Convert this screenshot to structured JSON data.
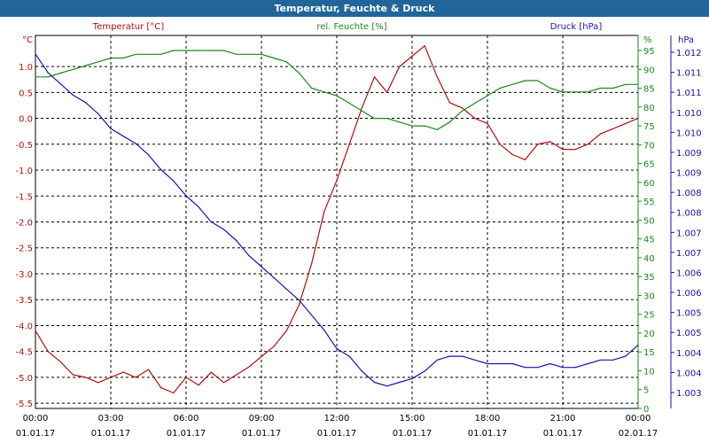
{
  "window": {
    "title": "Temperatur, Feuchte & Druck"
  },
  "colors": {
    "temperature": "#b01010",
    "humidity": "#1a8a1a",
    "pressure": "#1515a8",
    "grid": "#000000",
    "titlebar": "#21659a"
  },
  "chart_data": {
    "type": "line",
    "title": "Temperatur, Feuchte & Druck",
    "grid": true,
    "x_ticks": [
      {
        "time": "00:00",
        "date": "01.01.17"
      },
      {
        "time": "03:00",
        "date": "01.01.17"
      },
      {
        "time": "06:00",
        "date": "01.01.17"
      },
      {
        "time": "09:00",
        "date": "01.01.17"
      },
      {
        "time": "12:00",
        "date": "01.01.17"
      },
      {
        "time": "15:00",
        "date": "01.01.17"
      },
      {
        "time": "18:00",
        "date": "01.01.17"
      },
      {
        "time": "21:00",
        "date": "01.01.17"
      },
      {
        "time": "00:00",
        "date": "02.01.17"
      }
    ],
    "x_range_hours": [
      0,
      24
    ],
    "axes": {
      "temperature": {
        "legend": "Temperatur [°C]",
        "unit": "°C",
        "ylim": [
          -5.6,
          1.6
        ],
        "ticks": [
          "1.0",
          "0.5",
          "0.0",
          "-0.5",
          "-1.0",
          "-1.5",
          "-2.0",
          "-2.5",
          "-3.0",
          "-3.5",
          "-4.0",
          "-4.5",
          "-5.0",
          "-5.5"
        ]
      },
      "humidity": {
        "legend": "rel. Feuchte [%]",
        "unit": "%",
        "ylim": [
          0,
          99
        ],
        "ticks": [
          "95",
          "90",
          "85",
          "80",
          "75",
          "70",
          "65",
          "60",
          "55",
          "50",
          "45",
          "40",
          "35",
          "30",
          "25",
          "20",
          "15",
          "10",
          "5",
          "0"
        ]
      },
      "pressure": {
        "legend": "Druck [hPa]",
        "unit": "hPa",
        "ticks": [
          "1.012",
          "1.011",
          "1.011",
          "1.010",
          "1.010",
          "1.009",
          "1.009",
          "1.008",
          "1.008",
          "1.007",
          "1.007",
          "1.006",
          "1.006",
          "1.005",
          "1.005",
          "1.004",
          "1.004",
          "1.003"
        ]
      }
    },
    "series": [
      {
        "name": "Temperatur [°C]",
        "axis": "temperature",
        "x": [
          0,
          0.5,
          1,
          1.5,
          2,
          2.5,
          3,
          3.5,
          4,
          4.5,
          5,
          5.5,
          6,
          6.5,
          7,
          7.5,
          8,
          8.5,
          9,
          9.5,
          10,
          10.5,
          11,
          11.5,
          12,
          12.5,
          13,
          13.5,
          14,
          14.5,
          15,
          15.5,
          16,
          16.5,
          17,
          17.5,
          18,
          18.5,
          19,
          19.5,
          20,
          20.5,
          21,
          21.5,
          22,
          22.5,
          23,
          23.5,
          24
        ],
        "values": [
          -4.1,
          -4.5,
          -4.7,
          -4.95,
          -5.0,
          -5.1,
          -5.0,
          -4.9,
          -5.0,
          -4.85,
          -5.2,
          -5.3,
          -5.0,
          -5.15,
          -4.9,
          -5.1,
          -4.95,
          -4.8,
          -4.6,
          -4.4,
          -4.1,
          -3.6,
          -2.8,
          -1.8,
          -1.2,
          -0.5,
          0.2,
          0.8,
          0.5,
          1.0,
          1.2,
          1.4,
          0.8,
          0.3,
          0.2,
          0.0,
          -0.1,
          -0.5,
          -0.7,
          -0.8,
          -0.5,
          -0.45,
          -0.6,
          -0.6,
          -0.5,
          -0.3,
          -0.2,
          -0.1,
          0.0
        ]
      },
      {
        "name": "rel. Feuchte [%]",
        "axis": "humidity",
        "x": [
          0,
          0.5,
          1,
          1.5,
          2,
          2.5,
          3,
          3.5,
          4,
          4.5,
          5,
          5.5,
          6,
          6.5,
          7,
          7.5,
          8,
          8.5,
          9,
          9.5,
          10,
          10.5,
          11,
          11.5,
          12,
          12.5,
          13,
          13.5,
          14,
          14.5,
          15,
          15.5,
          16,
          16.5,
          17,
          17.5,
          18,
          18.5,
          19,
          19.5,
          20,
          20.5,
          21,
          21.5,
          22,
          22.5,
          23,
          23.5,
          24
        ],
        "values": [
          88,
          88,
          89,
          90,
          91,
          92,
          93,
          93,
          94,
          94,
          94,
          95,
          95,
          95,
          95,
          95,
          94,
          94,
          94,
          93,
          92,
          89,
          85,
          84,
          83,
          81,
          79,
          77,
          77,
          76,
          75,
          75,
          74,
          76,
          79,
          81,
          83,
          85,
          86,
          87,
          87,
          85,
          84,
          84,
          84,
          85,
          85,
          86,
          86
        ]
      },
      {
        "name": "Druck [hPa]",
        "axis": "pressure",
        "x": [
          0,
          0.5,
          1,
          1.5,
          2,
          2.5,
          3,
          3.5,
          4,
          4.5,
          5,
          5.5,
          6,
          6.5,
          7,
          7.5,
          8,
          8.5,
          9,
          9.5,
          10,
          10.5,
          11,
          11.5,
          12,
          12.5,
          13,
          13.5,
          14,
          14.5,
          15,
          15.5,
          16,
          16.5,
          17,
          17.5,
          18,
          18.5,
          19,
          19.5,
          20,
          20.5,
          21,
          21.5,
          22,
          22.5,
          23,
          23.5,
          24
        ],
        "levels_pct": [
          95,
          90,
          87,
          84,
          82,
          79,
          75,
          73,
          71,
          68,
          64,
          61,
          57,
          54,
          50,
          48,
          45,
          41,
          38,
          35,
          32,
          29,
          25,
          21,
          16,
          14,
          10,
          7,
          6,
          7,
          8,
          10,
          13,
          14,
          14,
          13,
          12,
          12,
          12,
          11,
          11,
          12,
          11,
          11,
          12,
          13,
          13,
          14,
          17
        ]
      }
    ]
  }
}
